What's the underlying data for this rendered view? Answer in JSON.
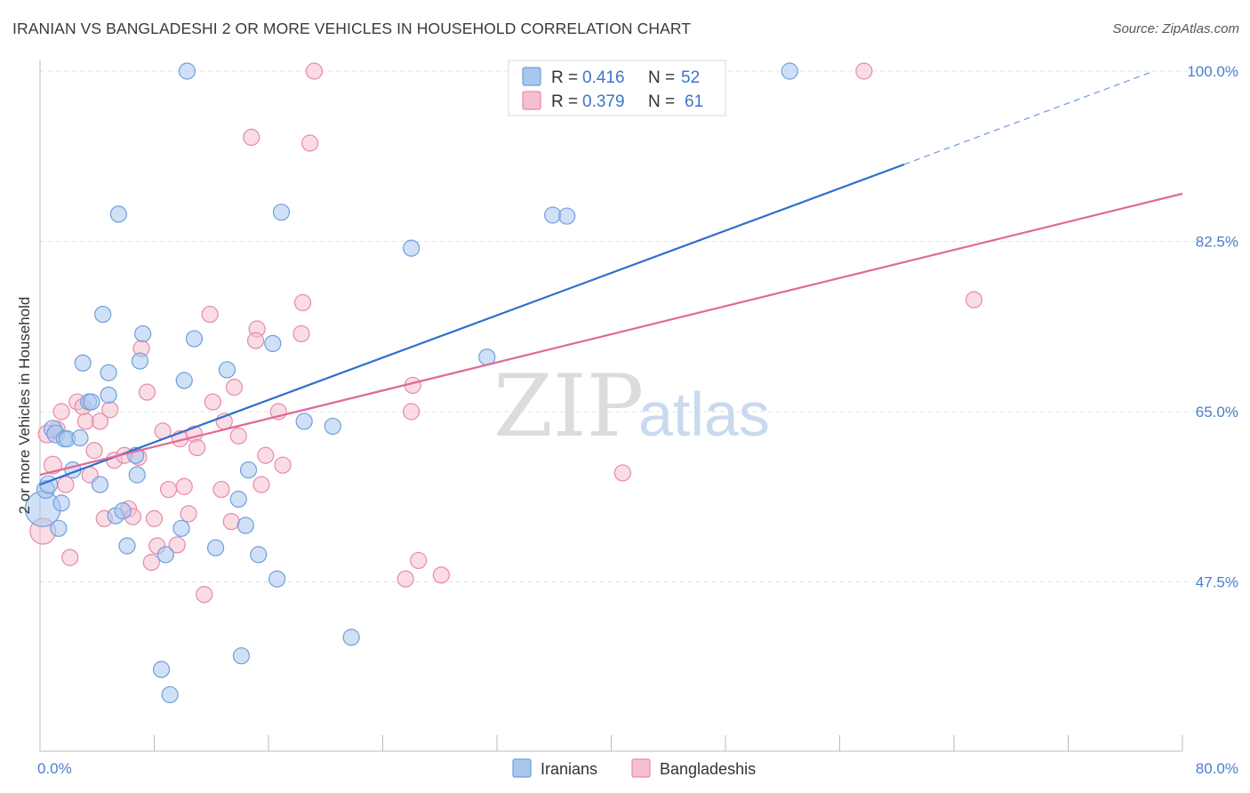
{
  "title": "IRANIAN VS BANGLADESHI 2 OR MORE VEHICLES IN HOUSEHOLD CORRELATION CHART",
  "source": "Source: ZipAtlas.com",
  "watermark": {
    "zip": "ZIP",
    "atlas": "atlas"
  },
  "colors": {
    "iranian_fill": "#a9c6ee",
    "iranian_stroke": "#6f9fdc",
    "iranian_line": "#2f6fcf",
    "bangladeshi_fill": "#f6bfd0",
    "bangladeshi_stroke": "#e68aa8",
    "bangladeshi_line": "#e06a93",
    "grid": "#e3e3e3",
    "axis_label": "#4a7fcb"
  },
  "legend": {
    "r_label": "R =",
    "n_label": "N =",
    "iranian": {
      "r": "0.416",
      "n": "52"
    },
    "bangladeshi": {
      "r": "0.379",
      "n": "61"
    }
  },
  "bottom_legend": [
    "Iranians",
    "Bangladeshis"
  ],
  "chart_data": {
    "type": "scatter",
    "title": "IRANIAN VS BANGLADESHI 2 OR MORE VEHICLES IN HOUSEHOLD CORRELATION CHART",
    "xlabel": "",
    "ylabel": "2 or more Vehicles in Household",
    "xlim": [
      0,
      80
    ],
    "ylim": [
      33,
      102
    ],
    "x_tick_labels": [
      "0.0%",
      "80.0%"
    ],
    "y_ticks": [
      47.5,
      65.0,
      82.5,
      100.0
    ],
    "y_tick_labels": [
      "47.5%",
      "65.0%",
      "82.5%",
      "100.0%"
    ],
    "grid": true,
    "legend_position": "top-center",
    "series": [
      {
        "name": "Iranians",
        "r": 0.416,
        "n": 52,
        "trend": {
          "x": [
            0,
            60.5
          ],
          "y": [
            57.5,
            90.4
          ],
          "dashed_to": [
            78,
            100
          ]
        },
        "points": [
          [
            0.2,
            55.0,
            22
          ],
          [
            0.4,
            57.0,
            11
          ],
          [
            0.6,
            57.5,
            11
          ],
          [
            0.9,
            63.2,
            11
          ],
          [
            1.1,
            62.7,
            11
          ],
          [
            1.3,
            53.0,
            10
          ],
          [
            1.5,
            55.6,
            10
          ],
          [
            1.7,
            62.2,
            10
          ],
          [
            1.9,
            62.2,
            10
          ],
          [
            2.3,
            59.0,
            10
          ],
          [
            2.8,
            62.3,
            10
          ],
          [
            3.0,
            70.0,
            10
          ],
          [
            3.4,
            66.0,
            10
          ],
          [
            3.6,
            66.0,
            10
          ],
          [
            4.2,
            57.5,
            10
          ],
          [
            4.4,
            75.0,
            10
          ],
          [
            4.8,
            66.7,
            10
          ],
          [
            4.8,
            69.0,
            10
          ],
          [
            5.3,
            54.3,
            10
          ],
          [
            5.5,
            85.3,
            10
          ],
          [
            5.8,
            54.8,
            10
          ],
          [
            6.1,
            51.2,
            10
          ],
          [
            6.7,
            60.5,
            10
          ],
          [
            6.8,
            58.5,
            10
          ],
          [
            7.0,
            70.2,
            10
          ],
          [
            7.2,
            73.0,
            10
          ],
          [
            8.5,
            38.5,
            10
          ],
          [
            8.8,
            50.3,
            10
          ],
          [
            9.1,
            35.9,
            10
          ],
          [
            9.9,
            53.0,
            10
          ],
          [
            10.1,
            68.2,
            10
          ],
          [
            10.3,
            100.0,
            10
          ],
          [
            10.8,
            72.5,
            10
          ],
          [
            12.3,
            51.0,
            10
          ],
          [
            13.1,
            69.3,
            10
          ],
          [
            13.9,
            56.0,
            10
          ],
          [
            14.1,
            39.9,
            10
          ],
          [
            14.4,
            53.3,
            10
          ],
          [
            14.6,
            59.0,
            10
          ],
          [
            15.3,
            50.3,
            10
          ],
          [
            16.3,
            72.0,
            10
          ],
          [
            16.6,
            47.8,
            10
          ],
          [
            16.9,
            85.5,
            10
          ],
          [
            18.5,
            64.0,
            10
          ],
          [
            20.5,
            63.5,
            10
          ],
          [
            21.8,
            41.8,
            10
          ],
          [
            26.0,
            81.8,
            10
          ],
          [
            31.3,
            70.6,
            10
          ],
          [
            35.9,
            85.2,
            10
          ],
          [
            36.9,
            85.1,
            10
          ],
          [
            52.5,
            100.0,
            10
          ]
        ]
      },
      {
        "name": "Bangladeshis",
        "r": 0.379,
        "n": 61,
        "trend": {
          "x": [
            0,
            80
          ],
          "y": [
            58.5,
            87.4
          ]
        },
        "points": [
          [
            0.2,
            52.7,
            16
          ],
          [
            0.5,
            62.7,
            11
          ],
          [
            0.9,
            59.5,
            11
          ],
          [
            1.2,
            63.2,
            10
          ],
          [
            1.5,
            65.0,
            10
          ],
          [
            1.8,
            57.5,
            10
          ],
          [
            2.1,
            50.0,
            10
          ],
          [
            2.6,
            66.0,
            10
          ],
          [
            3.0,
            65.5,
            10
          ],
          [
            3.2,
            64.0,
            10
          ],
          [
            3.5,
            58.5,
            10
          ],
          [
            3.8,
            61.0,
            10
          ],
          [
            4.2,
            64.0,
            10
          ],
          [
            4.5,
            54.0,
            10
          ],
          [
            4.9,
            65.2,
            10
          ],
          [
            5.2,
            60.0,
            10
          ],
          [
            5.9,
            60.5,
            10
          ],
          [
            6.2,
            55.0,
            10
          ],
          [
            6.5,
            54.2,
            10
          ],
          [
            6.9,
            60.3,
            10
          ],
          [
            7.1,
            71.5,
            10
          ],
          [
            7.5,
            67.0,
            10
          ],
          [
            7.8,
            49.5,
            10
          ],
          [
            8.0,
            54.0,
            10
          ],
          [
            8.2,
            51.2,
            10
          ],
          [
            8.6,
            63.0,
            10
          ],
          [
            9.0,
            57.0,
            10
          ],
          [
            9.6,
            51.3,
            10
          ],
          [
            9.8,
            62.2,
            10
          ],
          [
            10.1,
            57.3,
            10
          ],
          [
            10.4,
            54.5,
            10
          ],
          [
            10.8,
            62.7,
            10
          ],
          [
            11.0,
            61.3,
            10
          ],
          [
            11.5,
            46.2,
            10
          ],
          [
            11.9,
            75.0,
            10
          ],
          [
            12.1,
            66.0,
            10
          ],
          [
            12.7,
            57.0,
            10
          ],
          [
            12.9,
            64.0,
            10
          ],
          [
            13.4,
            53.7,
            10
          ],
          [
            13.6,
            67.5,
            10
          ],
          [
            13.9,
            62.5,
            10
          ],
          [
            14.8,
            93.2,
            10
          ],
          [
            15.2,
            73.5,
            10
          ],
          [
            15.1,
            72.3,
            10
          ],
          [
            15.5,
            57.5,
            10
          ],
          [
            15.8,
            60.5,
            10
          ],
          [
            16.7,
            65.0,
            10
          ],
          [
            17.0,
            59.5,
            10
          ],
          [
            18.3,
            73.0,
            10
          ],
          [
            18.4,
            76.2,
            10
          ],
          [
            18.9,
            92.6,
            10
          ],
          [
            19.2,
            100.0,
            10
          ],
          [
            25.6,
            47.8,
            10
          ],
          [
            26.0,
            65.0,
            10
          ],
          [
            26.1,
            67.7,
            10
          ],
          [
            26.5,
            49.7,
            10
          ],
          [
            28.1,
            48.2,
            10
          ],
          [
            40.8,
            58.7,
            10
          ],
          [
            57.7,
            100.0,
            10
          ],
          [
            65.4,
            76.5,
            10
          ]
        ]
      }
    ]
  }
}
